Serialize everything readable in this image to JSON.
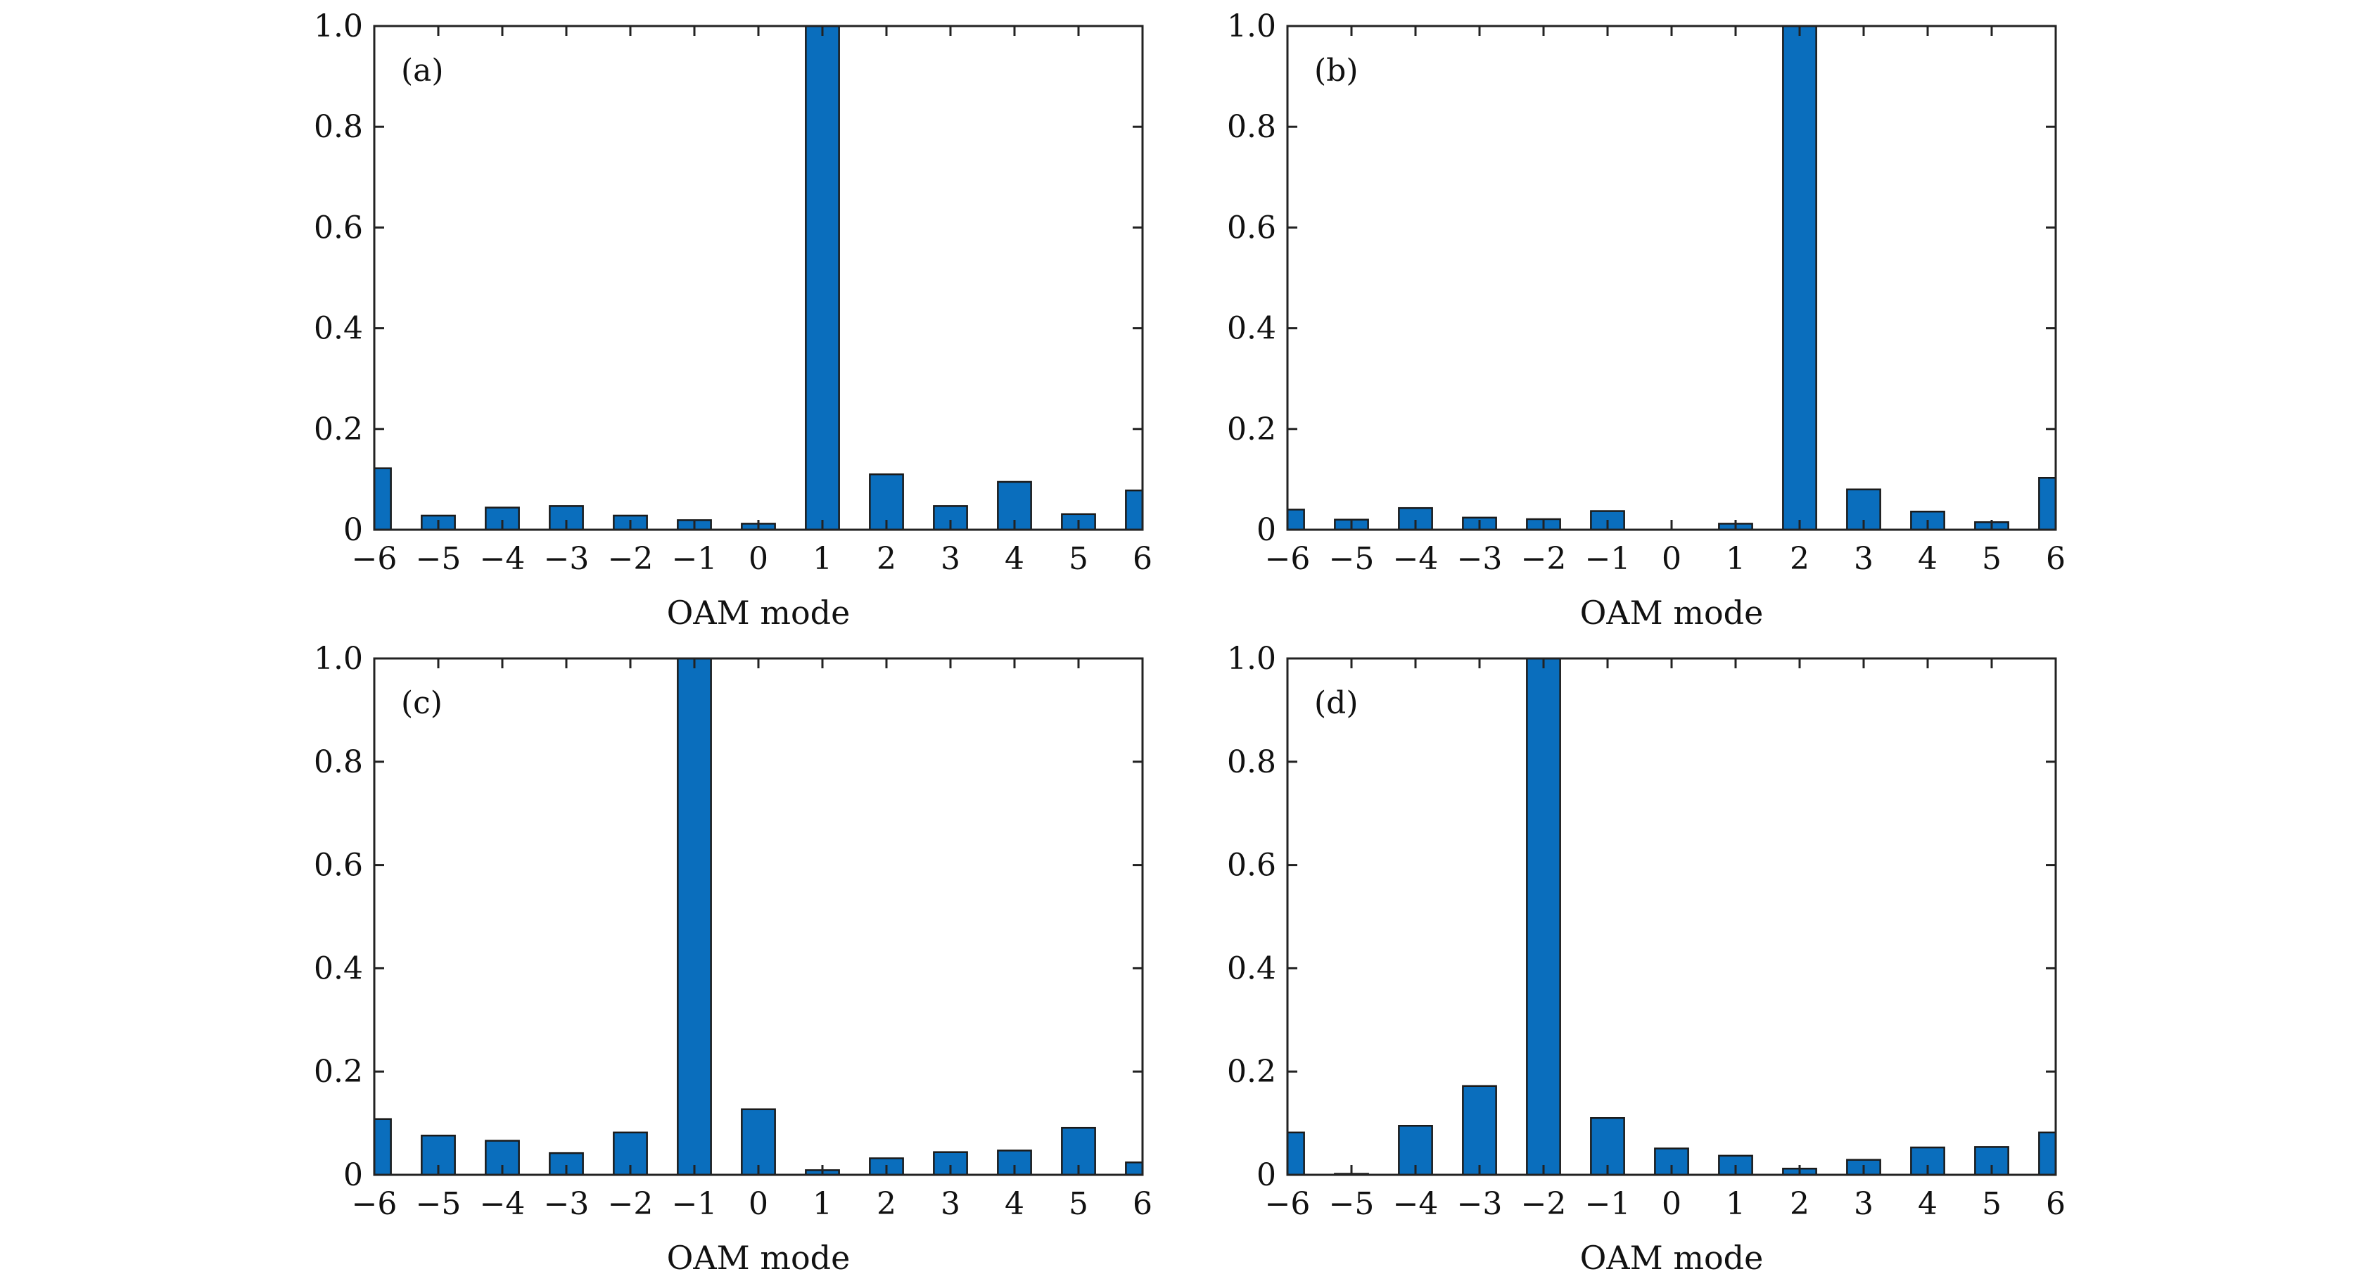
{
  "colors": {
    "bar": "#0a6ebd",
    "axis": "#222222"
  },
  "chart_data": [
    {
      "type": "bar",
      "panel_label": "(a)",
      "categories": [
        "−6",
        "−5",
        "−4",
        "−3",
        "−2",
        "−1",
        "0",
        "1",
        "2",
        "3",
        "4",
        "5",
        "6"
      ],
      "values": [
        0.122,
        0.028,
        0.044,
        0.047,
        0.028,
        0.019,
        0.012,
        1.0,
        0.11,
        0.047,
        0.095,
        0.031,
        0.078
      ],
      "xlabel": "OAM mode",
      "ylabel": "",
      "ylim": [
        0,
        1.0
      ],
      "yticks": [
        "0",
        "0.2",
        "0.4",
        "0.6",
        "0.8",
        "1.0"
      ],
      "ytick_values": [
        0,
        0.2,
        0.4,
        0.6,
        0.8,
        1.0
      ]
    },
    {
      "type": "bar",
      "panel_label": "(b)",
      "categories": [
        "−6",
        "−5",
        "−4",
        "−3",
        "−2",
        "−1",
        "0",
        "1",
        "2",
        "3",
        "4",
        "5",
        "6"
      ],
      "values": [
        0.04,
        0.02,
        0.043,
        0.024,
        0.021,
        0.037,
        0.0,
        0.012,
        1.0,
        0.08,
        0.036,
        0.015,
        0.103
      ],
      "xlabel": "OAM mode",
      "ylabel": "",
      "ylim": [
        0,
        1.0
      ],
      "yticks": [
        "0",
        "0.2",
        "0.4",
        "0.6",
        "0.8",
        "1.0"
      ],
      "ytick_values": [
        0,
        0.2,
        0.4,
        0.6,
        0.8,
        1.0
      ]
    },
    {
      "type": "bar",
      "panel_label": "(c)",
      "categories": [
        "−6",
        "−5",
        "−4",
        "−3",
        "−2",
        "−1",
        "0",
        "1",
        "2",
        "3",
        "4",
        "5",
        "6"
      ],
      "values": [
        0.108,
        0.076,
        0.066,
        0.042,
        0.082,
        1.0,
        0.127,
        0.009,
        0.032,
        0.044,
        0.047,
        0.091,
        0.024
      ],
      "xlabel": "OAM mode",
      "ylabel": "",
      "ylim": [
        0,
        1.0
      ],
      "yticks": [
        "0",
        "0.2",
        "0.4",
        "0.6",
        "0.8",
        "1.0"
      ],
      "ytick_values": [
        0,
        0.2,
        0.4,
        0.6,
        0.8,
        1.0
      ]
    },
    {
      "type": "bar",
      "panel_label": "(d)",
      "categories": [
        "−6",
        "−5",
        "−4",
        "−3",
        "−2",
        "−1",
        "0",
        "1",
        "2",
        "3",
        "4",
        "5",
        "6"
      ],
      "values": [
        0.082,
        0.002,
        0.095,
        0.172,
        1.0,
        0.11,
        0.051,
        0.037,
        0.012,
        0.029,
        0.053,
        0.054,
        0.082
      ],
      "xlabel": "OAM mode",
      "ylabel": "",
      "ylim": [
        0,
        1.0
      ],
      "yticks": [
        "0",
        "0.2",
        "0.4",
        "0.6",
        "0.8",
        "1.0"
      ],
      "ytick_values": [
        0,
        0.2,
        0.4,
        0.6,
        0.8,
        1.0
      ]
    }
  ]
}
